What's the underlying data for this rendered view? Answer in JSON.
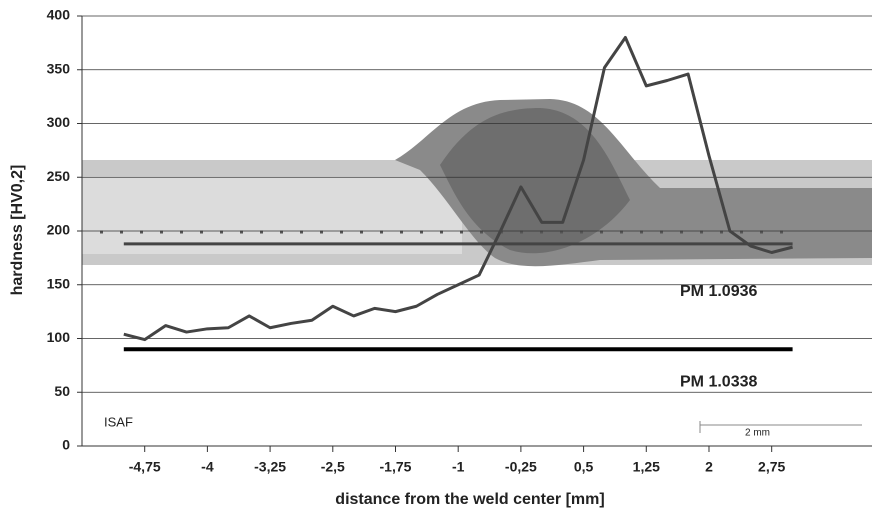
{
  "chart_data": {
    "type": "line",
    "x_label": "distance from the weld center [mm]",
    "y_label": "hardness [HV0,2]",
    "x": [
      -5,
      -4.75,
      -4.5,
      -4.25,
      -4,
      -3.75,
      -3.5,
      -3.25,
      -3,
      -2.75,
      -2.5,
      -2.25,
      -2,
      -1.75,
      -1.5,
      -1.25,
      -1,
      -0.75,
      -0.5,
      -0.25,
      0,
      0.25,
      0.5,
      0.75,
      1,
      1.25,
      1.5,
      1.75,
      2,
      2.25,
      2.5,
      2.75,
      3
    ],
    "series": [
      {
        "color": "#444444",
        "values": [
          104,
          99,
          112,
          106,
          109,
          110,
          121,
          110,
          114,
          117,
          130,
          121,
          128,
          125,
          130,
          141,
          150,
          159,
          199,
          241,
          208,
          208,
          266,
          352,
          380,
          335,
          340,
          346,
          270,
          200,
          186,
          180,
          185
        ]
      }
    ],
    "reference_lines": [
      {
        "name": "PM 1.0936",
        "value": 188,
        "color": "#444444"
      },
      {
        "name": "PM 1.0338",
        "value": 90,
        "color": "#000000"
      }
    ],
    "annotations": [
      "ISAF",
      "2 mm"
    ],
    "xlim": [
      -5.5,
      3.95
    ],
    "xticks": [
      {
        "value": -4.75,
        "label": "-4,75"
      },
      -4,
      {
        "value": -3.25,
        "label": "-3,25"
      },
      {
        "value": -2.5,
        "label": "-2,5"
      },
      {
        "value": -1.75,
        "label": "-1,75"
      },
      -1,
      {
        "value": -0.25,
        "label": "-0,25"
      },
      {
        "value": 0.5,
        "label": "0,5"
      },
      {
        "value": 1.25,
        "label": "1,25"
      },
      2,
      {
        "value": 2.75,
        "label": "2,75"
      }
    ],
    "ylim": [
      0,
      400
    ],
    "yticks": [
      0,
      50,
      100,
      150,
      200,
      250,
      300,
      350,
      400
    ],
    "grid": true
  }
}
